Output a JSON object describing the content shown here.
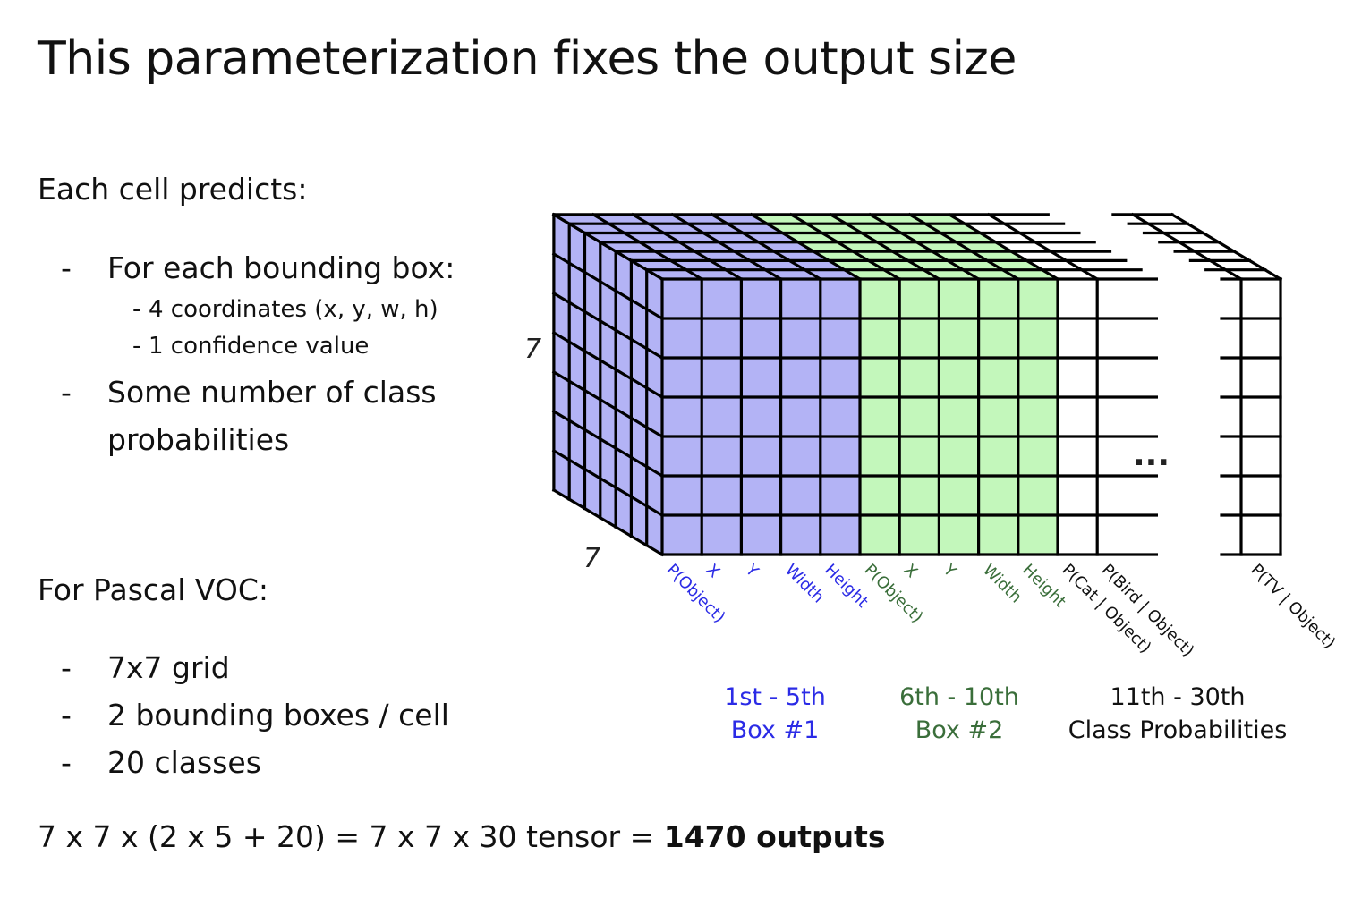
{
  "title": "This parameterization fixes the output size",
  "each_cell": {
    "heading": "Each cell predicts:",
    "bullets": [
      "For each bounding box:",
      "Some number of class probabilities"
    ],
    "sub_bullets": [
      "4 coordinates (x, y, w, h)",
      "1 confidence value"
    ]
  },
  "pascal": {
    "heading": "For Pascal VOC:",
    "bullets": [
      "7x7 grid",
      "2 bounding boxes / cell",
      "20 classes"
    ]
  },
  "formula": {
    "text": "7 x 7 x (2 x 5 + 20) = 7 x 7 x 30 tensor = ",
    "bold": "1470 outputs"
  },
  "diagram": {
    "grid_rows": 7,
    "grid_depth": 7,
    "dim_height_label": "7",
    "dim_depth_label": "7",
    "ellipsis": "...",
    "colors": {
      "box1": "#b3b3f5",
      "box2": "#c3f7bb",
      "box1_text": "#2b2be6",
      "box2_text": "#3a6e3a",
      "class_text": "#111111",
      "line": "#000000"
    },
    "columns": [
      {
        "label": "P(Object)",
        "group": "box1"
      },
      {
        "label": "X",
        "group": "box1"
      },
      {
        "label": "Y",
        "group": "box1"
      },
      {
        "label": "Width",
        "group": "box1"
      },
      {
        "label": "Height",
        "group": "box1"
      },
      {
        "label": "P(Object)",
        "group": "box2"
      },
      {
        "label": "X",
        "group": "box2"
      },
      {
        "label": "Y",
        "group": "box2"
      },
      {
        "label": "Width",
        "group": "box2"
      },
      {
        "label": "Height",
        "group": "box2"
      },
      {
        "label": "P(Cat | Object)",
        "group": "class"
      },
      {
        "label": "P(Bird | Object)",
        "group": "class"
      }
    ],
    "last_column": {
      "label": "P(TV | Object)",
      "group": "class"
    },
    "groups": [
      {
        "id": "box1",
        "line1": "1st - 5th",
        "line2": "Box #1"
      },
      {
        "id": "box2",
        "line1": "6th - 10th",
        "line2": "Box #2"
      },
      {
        "id": "class",
        "line1": "11th - 30th",
        "line2": "Class Probabilities"
      }
    ]
  }
}
